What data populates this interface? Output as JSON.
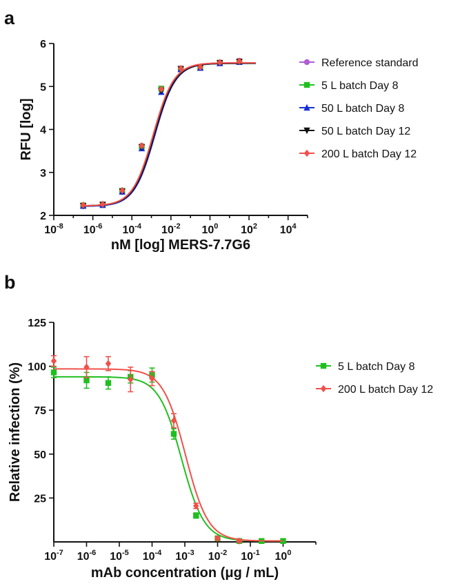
{
  "figure": {
    "panel_a_letter": "a",
    "panel_b_letter": "b"
  },
  "chart_data": [
    {
      "panel": "a",
      "type": "scatter",
      "xlabel": "nM [log] MERS-7.7G6",
      "ylabel": "RFU [log]",
      "x_scale": "log10",
      "xlim": [
        1e-08,
        100000.0
      ],
      "ylim": [
        2,
        6
      ],
      "x_ticks": [
        -8,
        -6,
        -4,
        -2,
        0,
        2,
        4
      ],
      "y_ticks": [
        2,
        3,
        4,
        5,
        6
      ],
      "legend_position": "right",
      "fit": "four-parameter logistic",
      "series": [
        {
          "name": "Reference standard",
          "color": "#b05dd6",
          "marker": "circle",
          "x": [
            3.2e-07,
            3.2e-06,
            3.2e-05,
            0.00032,
            0.0032,
            0.032,
            0.32,
            3.2,
            32
          ],
          "y": [
            2.24,
            2.26,
            2.58,
            3.62,
            4.93,
            5.42,
            5.46,
            5.56,
            5.6
          ],
          "fit_params": {
            "bottom": 2.22,
            "top": 5.55,
            "logEC50": -2.9,
            "hill": 0.82
          }
        },
        {
          "name": "5 L batch Day 8",
          "color": "#1fbf1f",
          "marker": "square",
          "x": [
            3.2e-07,
            3.2e-06,
            3.2e-05,
            0.00032,
            0.0032,
            0.032,
            0.32,
            3.2,
            32
          ],
          "y": [
            2.23,
            2.25,
            2.57,
            3.6,
            4.95,
            5.4,
            5.44,
            5.55,
            5.58
          ],
          "fit_params": {
            "bottom": 2.22,
            "top": 5.54,
            "logEC50": -2.88,
            "hill": 0.82
          }
        },
        {
          "name": "50 L batch Day 8",
          "color": "#1530d8",
          "marker": "triangle-up",
          "x": [
            3.2e-07,
            3.2e-06,
            3.2e-05,
            0.00032,
            0.0032,
            0.032,
            0.32,
            3.2,
            32
          ],
          "y": [
            2.22,
            2.24,
            2.55,
            3.56,
            4.87,
            5.4,
            5.43,
            5.54,
            5.57
          ],
          "fit_params": {
            "bottom": 2.21,
            "top": 5.54,
            "logEC50": -2.82,
            "hill": 0.82
          }
        },
        {
          "name": "50 L batch Day 12",
          "color": "#111111",
          "marker": "triangle-down",
          "x": [
            3.2e-07,
            3.2e-06,
            3.2e-05,
            0.00032,
            0.0032,
            0.032,
            0.32,
            3.2,
            32
          ],
          "y": [
            2.22,
            2.25,
            2.56,
            3.59,
            4.9,
            5.41,
            5.44,
            5.55,
            5.58
          ],
          "fit_params": {
            "bottom": 2.22,
            "top": 5.54,
            "logEC50": -2.85,
            "hill": 0.82
          }
        },
        {
          "name": "200 L batch Day 12",
          "color": "#f0504a",
          "marker": "diamond",
          "x": [
            3.2e-07,
            3.2e-06,
            3.2e-05,
            0.00032,
            0.0032,
            0.032,
            0.32,
            3.2,
            32
          ],
          "y": [
            2.24,
            2.26,
            2.58,
            3.62,
            4.94,
            5.42,
            5.45,
            5.56,
            5.59
          ],
          "fit_params": {
            "bottom": 2.22,
            "top": 5.55,
            "logEC50": -2.9,
            "hill": 0.82
          }
        }
      ]
    },
    {
      "panel": "b",
      "type": "scatter",
      "xlabel": "mAb concentration (μg / mL)",
      "ylabel": "Relative infection (%)",
      "x_scale": "log10",
      "xlim": [
        1e-07,
        10
      ],
      "ylim": [
        0,
        125
      ],
      "x_ticks": [
        -7,
        -6,
        -5,
        -4,
        -3,
        -2,
        -1,
        0
      ],
      "y_ticks": [
        25,
        50,
        75,
        100,
        125
      ],
      "legend_position": "right",
      "error_bars": true,
      "fit": "four-parameter logistic",
      "series": [
        {
          "name": "5 L batch Day 8",
          "color": "#1fbf1f",
          "marker": "square",
          "x": [
            1e-07,
            1e-06,
            4.6e-06,
            2.2e-05,
            0.0001,
            0.00046,
            0.0022,
            0.01,
            0.046,
            0.22,
            1.0
          ],
          "y": [
            96.5,
            92.0,
            90.5,
            94.0,
            95.0,
            61.5,
            15.0,
            2.0,
            0.5,
            0.5,
            0.5
          ],
          "err": [
            3.0,
            4.5,
            3.5,
            3.5,
            4.0,
            3.0,
            1.5,
            1.0,
            0.5,
            0.5,
            0.5
          ],
          "fit_params": {
            "bottom": 0.5,
            "top": 94.0,
            "logIC50": -3.1,
            "hill": 1.25
          }
        },
        {
          "name": "200 L batch Day 12",
          "color": "#f0504a",
          "marker": "diamond",
          "x": [
            1e-07,
            1e-06,
            4.6e-06,
            2.2e-05,
            0.0001,
            0.00046,
            0.0022,
            0.01,
            0.046
          ],
          "y": [
            103.0,
            99.5,
            101.5,
            92.5,
            93.0,
            69.0,
            20.5,
            2.0,
            0.5
          ],
          "err": [
            3.0,
            6.0,
            4.0,
            7.0,
            4.0,
            4.0,
            1.5,
            1.0,
            0.5
          ],
          "fit_params": {
            "bottom": 0.5,
            "top": 98.5,
            "logIC50": -2.98,
            "hill": 1.25
          }
        }
      ]
    }
  ]
}
